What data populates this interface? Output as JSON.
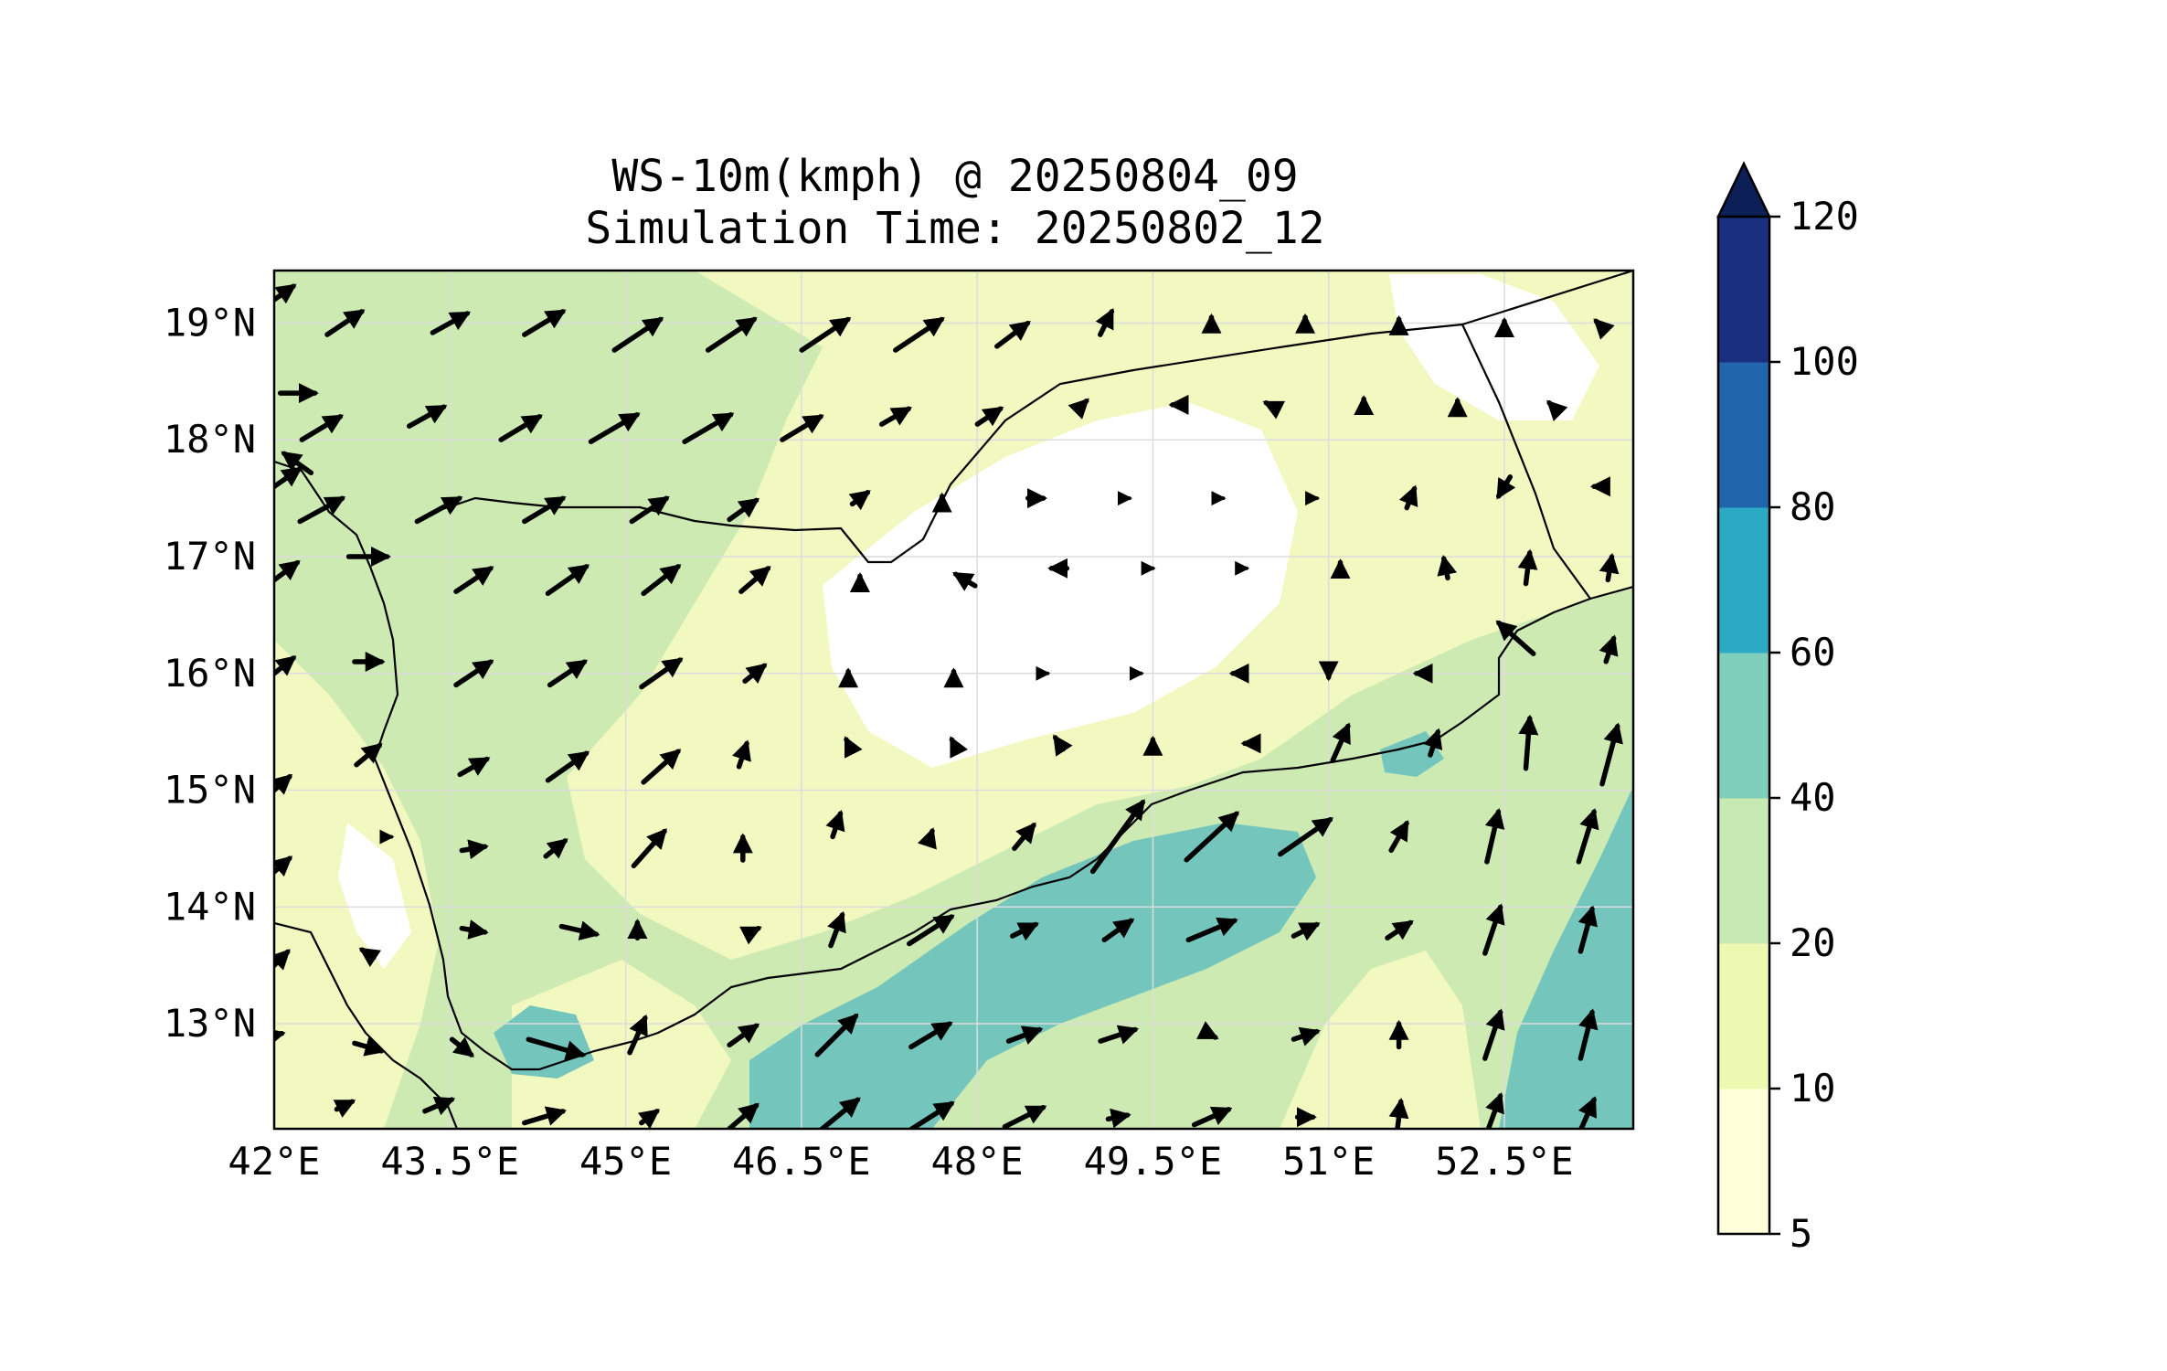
{
  "title": {
    "line1": "WS-10m(kmph) @ 20250804_09",
    "line2": "Simulation Time: 20250802_12"
  },
  "map": {
    "lon_range": [
      42.0,
      53.6
    ],
    "lat_range": [
      12.1,
      19.45
    ],
    "x_ticks": [
      {
        "value": 42.0,
        "label": "42°E"
      },
      {
        "value": 43.5,
        "label": "43.5°E"
      },
      {
        "value": 45.0,
        "label": "45°E"
      },
      {
        "value": 46.5,
        "label": "46.5°E"
      },
      {
        "value": 48.0,
        "label": "48°E"
      },
      {
        "value": 49.5,
        "label": "49.5°E"
      },
      {
        "value": 51.0,
        "label": "51°E"
      },
      {
        "value": 52.5,
        "label": "52.5°E"
      }
    ],
    "y_ticks": [
      {
        "value": 19,
        "label": "19°N"
      },
      {
        "value": 18,
        "label": "18°N"
      },
      {
        "value": 17,
        "label": "17°N"
      },
      {
        "value": 16,
        "label": "16°N"
      },
      {
        "value": 15,
        "label": "15°N"
      },
      {
        "value": 14,
        "label": "14°N"
      },
      {
        "value": 13,
        "label": "13°N"
      }
    ],
    "gridlines": true
  },
  "colorbar": {
    "levels": [
      "5",
      "10",
      "20",
      "40",
      "60",
      "80",
      "100",
      "120"
    ],
    "colors": [
      "#ffffd9",
      "#edf8b1",
      "#c7e9b4",
      "#7fcdbb",
      "#2ca9c4",
      "#2166ac",
      "#1b2f80"
    ],
    "extend_color": "#0c2057",
    "extend": "max"
  },
  "field_colors": {
    "c5": "#ffffff",
    "c10": "#f2f9c0",
    "c20": "#cdeab3",
    "c40": "#74c6bd",
    "land_line": "#000000",
    "arrow": "#000000",
    "grid": "#dddddd"
  },
  "wind_field": {
    "description_units": "kmph",
    "vectors": [
      [
        42.0,
        19.2,
        1.0,
        0.7
      ],
      [
        42.6,
        19.0,
        0.9,
        0.6
      ],
      [
        43.5,
        19.0,
        0.9,
        0.5
      ],
      [
        44.3,
        19.0,
        1.0,
        0.6
      ],
      [
        45.1,
        18.9,
        1.2,
        0.8
      ],
      [
        45.9,
        18.9,
        1.2,
        0.8
      ],
      [
        46.7,
        18.9,
        1.2,
        0.8
      ],
      [
        47.5,
        18.9,
        1.2,
        0.8
      ],
      [
        48.3,
        18.9,
        0.8,
        0.6
      ],
      [
        49.1,
        19.0,
        0.3,
        0.6
      ],
      [
        50.0,
        19.0,
        0.0,
        0.3
      ],
      [
        50.8,
        19.0,
        0.0,
        0.3
      ],
      [
        51.6,
        19.0,
        0.0,
        0.2
      ],
      [
        52.5,
        19.0,
        0.0,
        0.1
      ],
      [
        53.3,
        19.0,
        -0.1,
        0.1
      ],
      [
        42.2,
        18.4,
        0.9,
        0.0
      ],
      [
        42.4,
        18.1,
        1.0,
        0.6
      ],
      [
        43.3,
        18.2,
        0.9,
        0.5
      ],
      [
        44.1,
        18.1,
        1.0,
        0.6
      ],
      [
        44.9,
        18.1,
        1.2,
        0.7
      ],
      [
        45.7,
        18.1,
        1.2,
        0.7
      ],
      [
        46.5,
        18.1,
        1.0,
        0.6
      ],
      [
        47.3,
        18.2,
        0.7,
        0.4
      ],
      [
        48.1,
        18.2,
        0.6,
        0.4
      ],
      [
        48.9,
        18.3,
        0.2,
        0.2
      ],
      [
        49.7,
        18.3,
        -0.2,
        0.0
      ],
      [
        50.5,
        18.3,
        -0.2,
        0.1
      ],
      [
        51.3,
        18.3,
        0.0,
        0.3
      ],
      [
        52.1,
        18.3,
        0.0,
        0.2
      ],
      [
        52.9,
        18.3,
        -0.1,
        0.1
      ],
      [
        42.2,
        17.8,
        -0.7,
        0.5
      ],
      [
        42.4,
        17.4,
        1.1,
        0.6
      ],
      [
        43.4,
        17.4,
        1.1,
        0.6
      ],
      [
        44.3,
        17.4,
        1.0,
        0.6
      ],
      [
        45.2,
        17.4,
        0.9,
        0.6
      ],
      [
        46.0,
        17.4,
        0.7,
        0.5
      ],
      [
        47.0,
        17.5,
        0.4,
        0.3
      ],
      [
        47.7,
        17.5,
        0.0,
        0.1
      ],
      [
        48.5,
        17.5,
        0.4,
        0.0
      ],
      [
        49.3,
        17.5,
        0.0,
        0.0
      ],
      [
        50.1,
        17.5,
        0.0,
        0.0
      ],
      [
        50.9,
        17.5,
        0.0,
        0.0
      ],
      [
        51.7,
        17.5,
        0.2,
        0.5
      ],
      [
        52.5,
        17.6,
        -0.3,
        -0.5
      ],
      [
        53.3,
        17.6,
        -0.2,
        0.0
      ],
      [
        42.0,
        17.6,
        1.3,
        0.9
      ],
      [
        42.8,
        17.0,
        1.0,
        0.0
      ],
      [
        43.7,
        16.8,
        0.9,
        0.6
      ],
      [
        44.5,
        16.8,
        1.0,
        0.7
      ],
      [
        45.3,
        16.8,
        0.9,
        0.7
      ],
      [
        46.1,
        16.8,
        0.7,
        0.6
      ],
      [
        47.0,
        16.8,
        0.0,
        0.2
      ],
      [
        47.9,
        16.8,
        -0.5,
        0.3
      ],
      [
        48.7,
        16.9,
        -0.4,
        0.0
      ],
      [
        49.5,
        16.9,
        0.0,
        0.0
      ],
      [
        50.3,
        16.9,
        0.0,
        0.0
      ],
      [
        51.1,
        16.9,
        0.0,
        0.3
      ],
      [
        52.0,
        16.9,
        -0.1,
        0.5
      ],
      [
        52.7,
        16.9,
        0.1,
        0.8
      ],
      [
        53.4,
        16.9,
        0.1,
        0.6
      ],
      [
        42.0,
        16.8,
        1.2,
        0.9
      ],
      [
        42.8,
        16.1,
        0.7,
        0.0
      ],
      [
        43.7,
        16.0,
        0.9,
        0.6
      ],
      [
        44.5,
        16.0,
        0.9,
        0.6
      ],
      [
        45.3,
        16.0,
        1.0,
        0.7
      ],
      [
        46.1,
        16.0,
        0.5,
        0.4
      ],
      [
        46.9,
        16.0,
        0.0,
        0.1
      ],
      [
        47.8,
        16.0,
        0.0,
        0.1
      ],
      [
        48.6,
        16.0,
        0.0,
        0.0
      ],
      [
        49.4,
        16.0,
        0.0,
        0.0
      ],
      [
        50.2,
        16.0,
        -0.1,
        0.0
      ],
      [
        51.0,
        16.0,
        0.0,
        -0.2
      ],
      [
        51.8,
        16.0,
        -0.3,
        0.0
      ],
      [
        52.6,
        16.3,
        -0.9,
        0.8
      ],
      [
        53.4,
        16.2,
        0.2,
        0.6
      ],
      [
        42.0,
        16.0,
        1.0,
        0.8
      ],
      [
        42.8,
        15.3,
        0.6,
        0.5
      ],
      [
        43.7,
        15.2,
        0.7,
        0.4
      ],
      [
        44.5,
        15.2,
        1.0,
        0.7
      ],
      [
        45.3,
        15.2,
        0.9,
        0.8
      ],
      [
        46.0,
        15.3,
        0.2,
        0.6
      ],
      [
        46.9,
        15.4,
        -0.1,
        0.2
      ],
      [
        47.8,
        15.4,
        -0.1,
        0.2
      ],
      [
        48.7,
        15.4,
        -0.2,
        0.3
      ],
      [
        49.5,
        15.4,
        0.0,
        0.2
      ],
      [
        50.3,
        15.4,
        -0.1,
        0.0
      ],
      [
        51.1,
        15.4,
        0.4,
        0.9
      ],
      [
        51.9,
        15.4,
        0.2,
        0.6
      ],
      [
        52.7,
        15.4,
        0.1,
        1.3
      ],
      [
        53.4,
        15.3,
        0.4,
        1.5
      ],
      [
        42.0,
        15.0,
        0.8,
        0.7
      ],
      [
        43.0,
        14.6,
        0.0,
        0.0
      ],
      [
        43.7,
        14.5,
        0.6,
        0.1
      ],
      [
        44.4,
        14.5,
        0.5,
        0.4
      ],
      [
        45.2,
        14.5,
        0.8,
        0.9
      ],
      [
        46.0,
        14.5,
        0.0,
        0.6
      ],
      [
        46.8,
        14.7,
        0.2,
        0.6
      ],
      [
        47.6,
        14.6,
        0.1,
        0.3
      ],
      [
        48.4,
        14.6,
        0.5,
        0.6
      ],
      [
        49.2,
        14.6,
        1.3,
        1.8
      ],
      [
        50.0,
        14.6,
        1.3,
        1.2
      ],
      [
        50.8,
        14.6,
        1.3,
        0.9
      ],
      [
        51.6,
        14.6,
        0.4,
        0.7
      ],
      [
        52.4,
        14.6,
        0.3,
        1.3
      ],
      [
        53.2,
        14.6,
        0.4,
        1.3
      ],
      [
        42.0,
        14.3,
        0.8,
        0.7
      ],
      [
        42.8,
        13.6,
        -0.3,
        0.2
      ],
      [
        43.7,
        13.8,
        0.6,
        -0.1
      ],
      [
        44.6,
        13.8,
        0.9,
        -0.2
      ],
      [
        45.1,
        13.8,
        0.0,
        0.4
      ],
      [
        46.1,
        13.8,
        0.2,
        0.1
      ],
      [
        46.8,
        13.8,
        0.3,
        0.8
      ],
      [
        47.6,
        13.8,
        1.1,
        0.7
      ],
      [
        48.4,
        13.8,
        0.6,
        0.3
      ],
      [
        49.2,
        13.8,
        0.7,
        0.5
      ],
      [
        50.0,
        13.8,
        1.2,
        0.5
      ],
      [
        50.8,
        13.8,
        0.6,
        0.3
      ],
      [
        51.6,
        13.8,
        0.6,
        0.4
      ],
      [
        52.4,
        13.8,
        0.4,
        1.2
      ],
      [
        53.2,
        13.8,
        0.3,
        1.1
      ],
      [
        42.0,
        13.5,
        0.7,
        0.7
      ],
      [
        42.8,
        12.8,
        0.7,
        -0.2
      ],
      [
        43.6,
        12.8,
        0.5,
        -0.4
      ],
      [
        44.4,
        12.8,
        1.4,
        -0.4
      ],
      [
        45.1,
        12.9,
        0.4,
        0.9
      ],
      [
        46.0,
        12.9,
        0.7,
        0.5
      ],
      [
        46.8,
        12.9,
        1.0,
        1.0
      ],
      [
        47.6,
        12.9,
        1.0,
        0.6
      ],
      [
        48.4,
        12.9,
        0.8,
        0.3
      ],
      [
        49.2,
        12.9,
        0.9,
        0.3
      ],
      [
        50.0,
        12.9,
        0.2,
        -0.1
      ],
      [
        50.8,
        12.9,
        0.6,
        0.2
      ],
      [
        51.6,
        12.9,
        0.0,
        0.6
      ],
      [
        52.4,
        12.9,
        0.4,
        1.2
      ],
      [
        53.2,
        12.9,
        0.3,
        1.2
      ],
      [
        42.0,
        12.9,
        0.4,
        0.1
      ],
      [
        42.6,
        12.3,
        0.4,
        0.2
      ],
      [
        43.4,
        12.3,
        0.7,
        0.3
      ],
      [
        44.3,
        12.2,
        1.0,
        0.3
      ],
      [
        45.2,
        12.2,
        0.4,
        0.3
      ],
      [
        46.0,
        12.2,
        0.7,
        0.6
      ],
      [
        46.8,
        12.2,
        1.1,
        0.9
      ],
      [
        47.6,
        12.2,
        1.1,
        0.7
      ],
      [
        48.4,
        12.2,
        1.0,
        0.5
      ],
      [
        49.2,
        12.2,
        0.5,
        0.1
      ],
      [
        50.0,
        12.2,
        0.9,
        0.4
      ],
      [
        50.8,
        12.2,
        0.4,
        0.0
      ],
      [
        51.6,
        12.2,
        0.1,
        0.8
      ],
      [
        52.4,
        12.2,
        0.4,
        1.1
      ],
      [
        53.2,
        12.2,
        0.4,
        0.9
      ]
    ]
  }
}
